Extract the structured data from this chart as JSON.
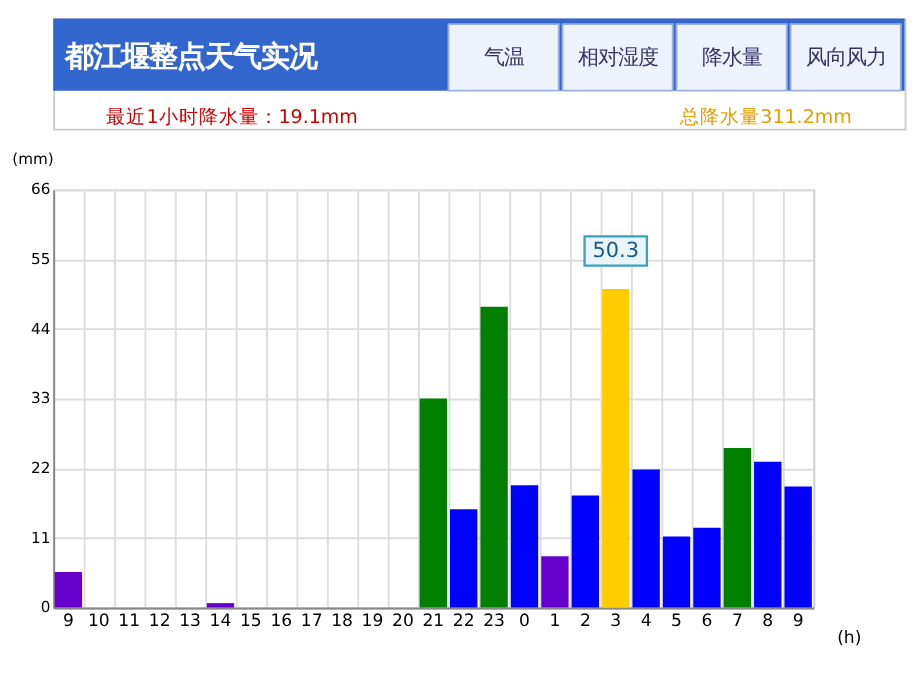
{
  "chart_data": {
    "type": "bar",
    "title": "都江堰整点天气实况",
    "categories": [
      "9",
      "10",
      "11",
      "12",
      "13",
      "14",
      "15",
      "16",
      "17",
      "18",
      "19",
      "20",
      "21",
      "22",
      "23",
      "0",
      "1",
      "2",
      "3",
      "4",
      "5",
      "6",
      "7",
      "8",
      "9"
    ],
    "values": [
      5.6,
      0,
      0,
      0,
      0,
      0.7,
      0,
      0,
      0,
      0,
      0,
      0,
      33,
      15.5,
      47.5,
      19.3,
      8.1,
      17.7,
      50.3,
      21.8,
      11.2,
      12.6,
      25.2,
      23,
      19.1
    ],
    "colors": [
      "#6600cc",
      "#0000ff",
      "#0000ff",
      "#0000ff",
      "#0000ff",
      "#6600cc",
      "#0000ff",
      "#0000ff",
      "#0000ff",
      "#0000ff",
      "#0000ff",
      "#0000ff",
      "#007f00",
      "#0000ff",
      "#007f00",
      "#0000ff",
      "#6600cc",
      "#0000ff",
      "#ffcc00",
      "#0000ff",
      "#0000ff",
      "#0000ff",
      "#007f00",
      "#0000ff",
      "#0000ff"
    ],
    "ylabel": "(mm)",
    "xlabel": "(h)",
    "ylim": [
      0,
      66
    ],
    "yticks": [
      0,
      11,
      22,
      33,
      44,
      55,
      66
    ],
    "grid": true,
    "legend": false,
    "annotations": [
      "气温",
      "相对湿度",
      "降水量",
      "风向风力",
      "最近1小时降水量：19.1mm",
      "总降水量311.2mm",
      {
        "text": "50.3",
        "x": "3",
        "y": 50.3
      }
    ]
  }
}
